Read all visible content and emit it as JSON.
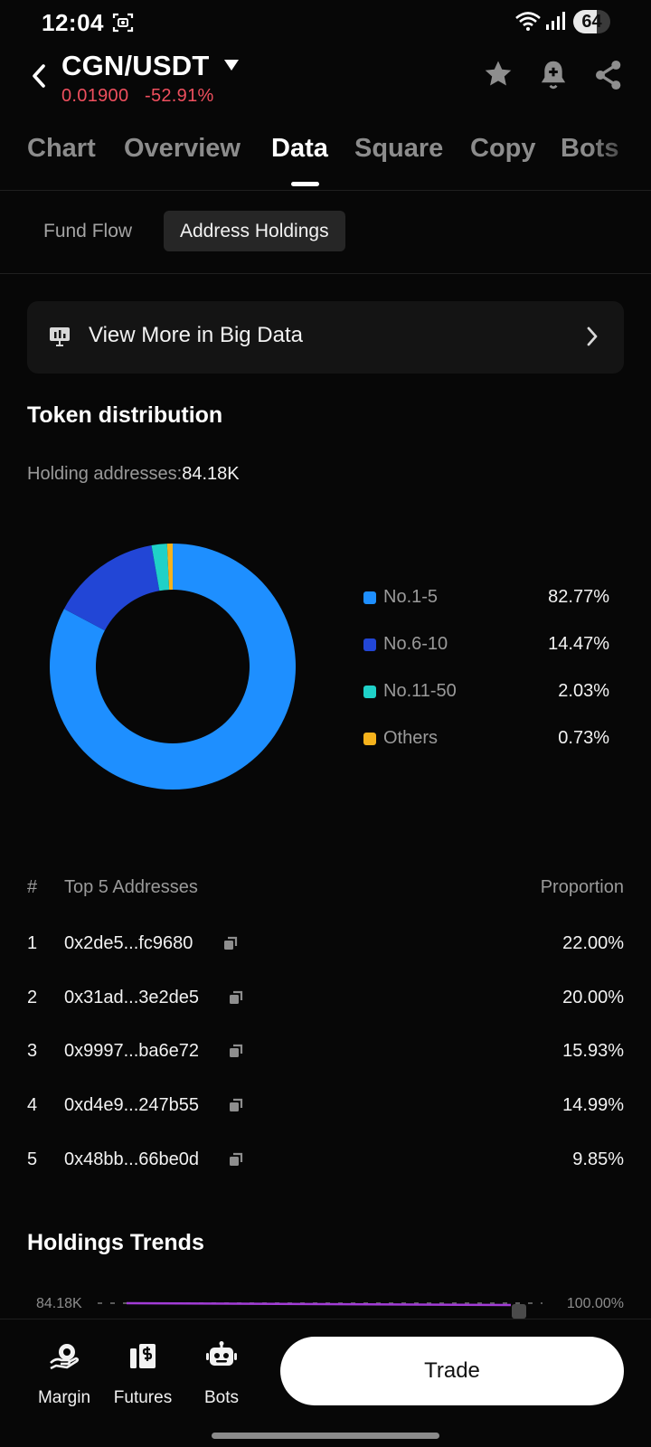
{
  "status_bar": {
    "time": "12:04",
    "battery": "64",
    "battery_level": 0.64
  },
  "header": {
    "pair": "CGN/USDT",
    "price": "0.01900",
    "change": "-52.91%"
  },
  "tabs": [
    "Chart",
    "Overview",
    "Data",
    "Square",
    "Copy",
    "Bots"
  ],
  "active_tab": "Data",
  "subtabs": [
    "Fund Flow",
    "Address Holdings"
  ],
  "active_subtab": "Address Holdings",
  "big_data_link": "View More in Big Data",
  "token_distribution": {
    "title": "Token distribution",
    "holding_label": "Holding addresses:",
    "holding_value": "84.18K"
  },
  "chart_data": {
    "type": "pie",
    "title": "",
    "categories": [
      "No.1-5",
      "No.6-10",
      "No.11-50",
      "Others"
    ],
    "values": [
      82.77,
      14.47,
      2.03,
      0.73
    ],
    "labels": [
      "82.77%",
      "14.47%",
      "2.03%",
      "0.73%"
    ],
    "colors": [
      "#1e8fff",
      "#2246d6",
      "#1fd1c8",
      "#f5b21c"
    ],
    "legend": "right"
  },
  "top_addresses": {
    "header_rank": "#",
    "header_address": "Top 5 Addresses",
    "header_proportion": "Proportion",
    "rows": [
      {
        "rank": "1",
        "address": "0x2de5...fc9680",
        "proportion": "22.00%"
      },
      {
        "rank": "2",
        "address": "0x31ad...3e2de5",
        "proportion": "20.00%"
      },
      {
        "rank": "3",
        "address": "0x9997...ba6e72",
        "proportion": "15.93%"
      },
      {
        "rank": "4",
        "address": "0xd4e9...247b55",
        "proportion": "14.99%"
      },
      {
        "rank": "5",
        "address": "0x48bb...66be0d",
        "proportion": "9.85%"
      }
    ]
  },
  "holdings_trends": {
    "title": "Holdings Trends",
    "left_axis_top": "84.18K",
    "right_axis_top": "100.00%"
  },
  "bottom_nav": [
    {
      "label": "Margin",
      "icon": "margin-icon"
    },
    {
      "label": "Futures",
      "icon": "futures-icon"
    },
    {
      "label": "Bots",
      "icon": "bots-icon"
    }
  ],
  "trade_button": "Trade"
}
